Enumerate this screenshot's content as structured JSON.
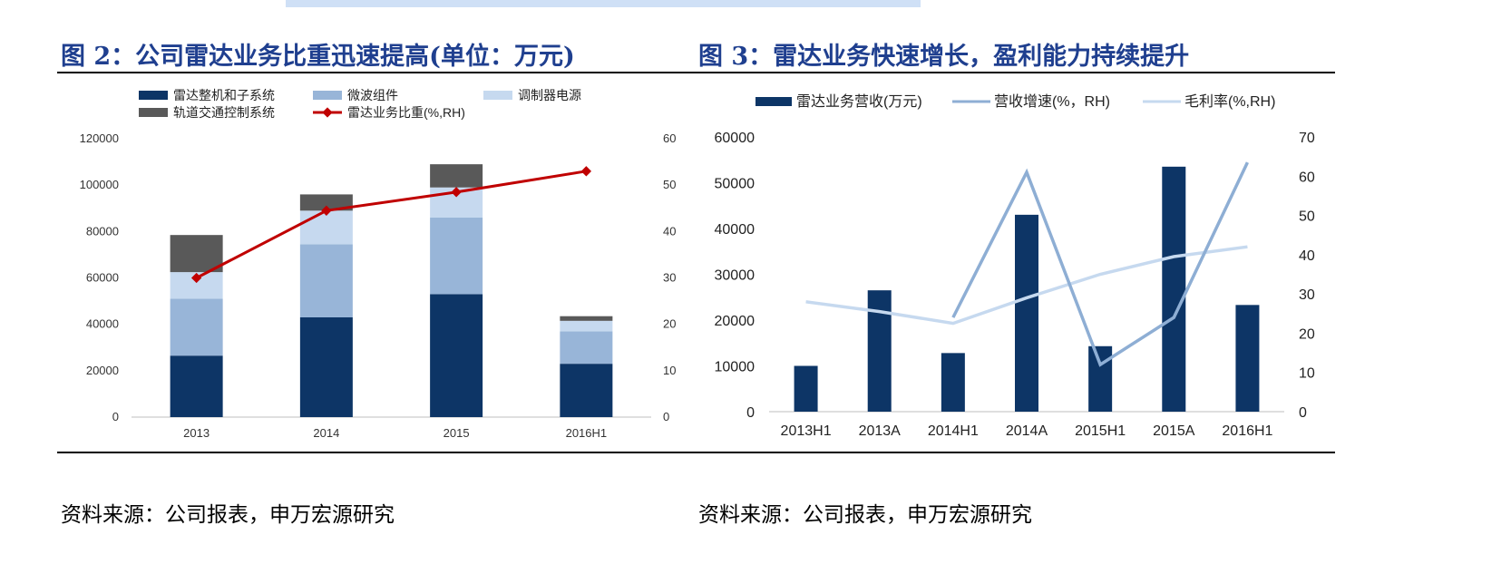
{
  "figures": {
    "left": {
      "title": "图 2：公司雷达业务比重迅速提高(单位：万元)",
      "source": "资料来源：公司报表，申万宏源研究"
    },
    "right": {
      "title": "图 3：雷达业务快速增长，盈利能力持续提升",
      "source": "资料来源：公司报表，申万宏源研究"
    }
  },
  "chart_data": [
    {
      "type": "bar",
      "stacked": true,
      "categories": [
        "2013",
        "2014",
        "2015",
        "2016H1"
      ],
      "series": [
        {
          "name": "雷达整机和子系统",
          "values": [
            26500,
            43000,
            53000,
            23000
          ],
          "color": "#0d3566"
        },
        {
          "name": "微波组件",
          "values": [
            24500,
            31500,
            33000,
            14000
          ],
          "color": "#98b5d8"
        },
        {
          "name": "调制器电源",
          "values": [
            11500,
            14500,
            13000,
            4500
          ],
          "color": "#c6d9ef"
        },
        {
          "name": "轨道交通控制系统",
          "values": [
            16000,
            7000,
            10000,
            2000
          ],
          "color": "#595959"
        }
      ],
      "line_series": {
        "name": "雷达业务比重(%,RH)",
        "values": [
          30,
          44.5,
          48.5,
          53
        ],
        "color": "#c00000",
        "axis": "right"
      },
      "y_left": {
        "min": 0,
        "max": 120000,
        "ticks": [
          "0",
          "20000",
          "40000",
          "60000",
          "80000",
          "100000",
          "120000"
        ]
      },
      "y_right": {
        "min": 0,
        "max": 60,
        "ticks": [
          "0",
          "10",
          "20",
          "30",
          "40",
          "50",
          "60"
        ]
      },
      "legend_position": "top",
      "grid": false
    },
    {
      "type": "bar",
      "categories": [
        "2013H1",
        "2013A",
        "2014H1",
        "2014A",
        "2015H1",
        "2015A",
        "2016H1"
      ],
      "series": [
        {
          "name": "雷达业务营收(万元)",
          "values": [
            10000,
            26500,
            12800,
            43000,
            14300,
            53500,
            23300
          ],
          "color": "#0d3566"
        }
      ],
      "line_series": [
        {
          "name": "营收增速(%，RH)",
          "values": [
            null,
            null,
            24,
            61,
            12,
            24,
            63.5
          ],
          "color": "#8eaed4",
          "axis": "right"
        },
        {
          "name": "毛利率(%,RH)",
          "values": [
            28,
            25.5,
            22.5,
            29,
            35,
            39.5,
            42
          ],
          "color": "#c6d9ef",
          "axis": "right"
        }
      ],
      "y_left": {
        "min": 0,
        "max": 60000,
        "ticks": [
          "0",
          "10000",
          "20000",
          "30000",
          "40000",
          "50000",
          "60000"
        ]
      },
      "y_right": {
        "min": 0,
        "max": 70,
        "ticks": [
          "0",
          "10",
          "20",
          "30",
          "40",
          "50",
          "60",
          "70"
        ]
      },
      "legend_position": "top",
      "grid": false
    }
  ]
}
